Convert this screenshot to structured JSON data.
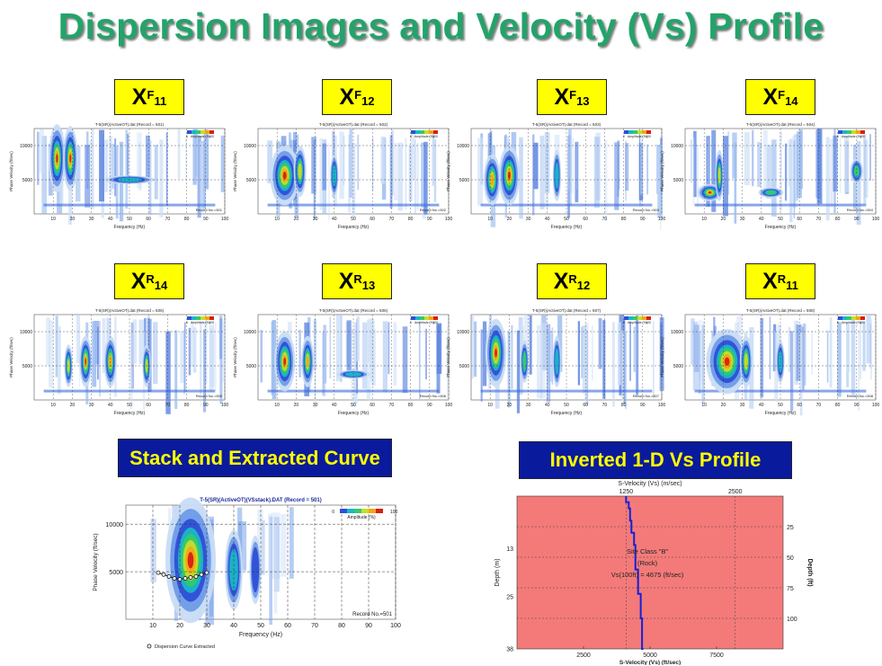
{
  "title": "Dispersion Images and Velocity (Vs) Profile",
  "forward_labels": [
    {
      "base": "X",
      "sup": "F",
      "sub": "11"
    },
    {
      "base": "X",
      "sup": "F",
      "sub": "12"
    },
    {
      "base": "X",
      "sup": "F",
      "sub": "13"
    },
    {
      "base": "X",
      "sup": "F",
      "sub": "14"
    }
  ],
  "reverse_labels": [
    {
      "base": "X",
      "sup": "R",
      "sub": "14"
    },
    {
      "base": "X",
      "sup": "R",
      "sub": "13"
    },
    {
      "base": "X",
      "sup": "R",
      "sub": "12"
    },
    {
      "base": "X",
      "sup": "R",
      "sub": "11"
    }
  ],
  "small_panels": [
    {
      "title": "T-5(SR)(ActiveOT).dat (Record = 501)",
      "record": "Record No.=501"
    },
    {
      "title": "T-5(SR)(ActiveOT).dat (Record = 502)",
      "record": "Record No.=502"
    },
    {
      "title": "T-5(SR)(ActiveOT).dat (Record = 503)",
      "record": "Record No.=503"
    },
    {
      "title": "T-5(SR)(ActiveOT).dat (Record = 504)",
      "record": "Record No.=504"
    },
    {
      "title": "T-5(SR)(ActiveOT).dat (Record = 505)",
      "record": "Record No.=505"
    },
    {
      "title": "T-5(SR)(ActiveOT).dat (Record = 506)",
      "record": "Record No.=506"
    },
    {
      "title": "T-5(SR)(ActiveOT).dat (Record = 507)",
      "record": "Record No.=507"
    },
    {
      "title": "T-5(SR)(ActiveOT).dat (Record = 508)",
      "record": "Record No.=508"
    }
  ],
  "small_axes": {
    "xlabel": "Frequency (Hz)",
    "ylabel": "Phase Velocity (ft/sec)",
    "xticks": [
      "10",
      "20",
      "30",
      "40",
      "50",
      "60",
      "70",
      "80",
      "90",
      "100"
    ],
    "yticks": [
      "10000",
      "5000"
    ],
    "amp_label": "Amplitude (%)",
    "amp_min": "0",
    "amp_max": "100"
  },
  "stack_box": "Stack and Extracted Curve",
  "profile_box": "Inverted 1-D Vs Profile",
  "stack_chart": {
    "title": "T-5(SR)(ActiveOT)(VSstack).DAT (Record = 501)",
    "xlabel": "Frequency (Hz)",
    "ylabel": "Phase Velocity (ft/sec)",
    "record": "Record No.=501",
    "legend": "Dispersion Curve Extracted",
    "amp_label": "Amplitude (%)",
    "amp_min": "0",
    "amp_max": "100",
    "xticks": [
      "10",
      "20",
      "30",
      "40",
      "50",
      "60",
      "70",
      "80",
      "90",
      "100"
    ],
    "yticks": [
      "10000",
      "5000"
    ]
  },
  "profile_chart": {
    "top_label": "S-Velocity (Vs) (m/sec)",
    "top_ticks": [
      "1250",
      "2500"
    ],
    "bottom_label": "S-Velocity (Vs) (ft/sec)",
    "bottom_ticks": [
      "2500",
      "5000",
      "7500"
    ],
    "left_label": "Depth (m)",
    "left_ticks": [
      "13",
      "25",
      "38"
    ],
    "right_label": "Depth (ft)",
    "right_ticks": [
      "25",
      "50",
      "75",
      "100"
    ],
    "annotation": [
      "Site Class \"B\"",
      "(Rock)",
      "Vs(100ft) = 4675 (ft/sec)"
    ],
    "background": "#f47a7a",
    "line_color": "#1520d8"
  },
  "chart_data": {
    "type": "line",
    "title": "T-5(SR)(ActiveOT)(VSstack).DAT (Record = 501)",
    "xlabel": "Frequency (Hz)",
    "ylabel": "Phase Velocity (ft/sec)",
    "xlim": [
      0,
      100
    ],
    "ylim": [
      0,
      12000
    ],
    "series": [
      {
        "name": "Dispersion Curve Extracted",
        "x": [
          12,
          14,
          16,
          18,
          20,
          22,
          24,
          26,
          28,
          30
        ],
        "y": [
          4900,
          4700,
          4500,
          4300,
          4200,
          4300,
          4400,
          4500,
          4700,
          4900
        ]
      }
    ],
    "profile": {
      "x_unit": "ft/sec",
      "depth_unit": "ft",
      "vs100": "4675",
      "depth": [
        0,
        5,
        10,
        20,
        30,
        40,
        60,
        80,
        100,
        125
      ],
      "velocity": [
        4100,
        4200,
        4250,
        4300,
        4400,
        4450,
        4550,
        4650,
        4700,
        4750
      ]
    }
  }
}
